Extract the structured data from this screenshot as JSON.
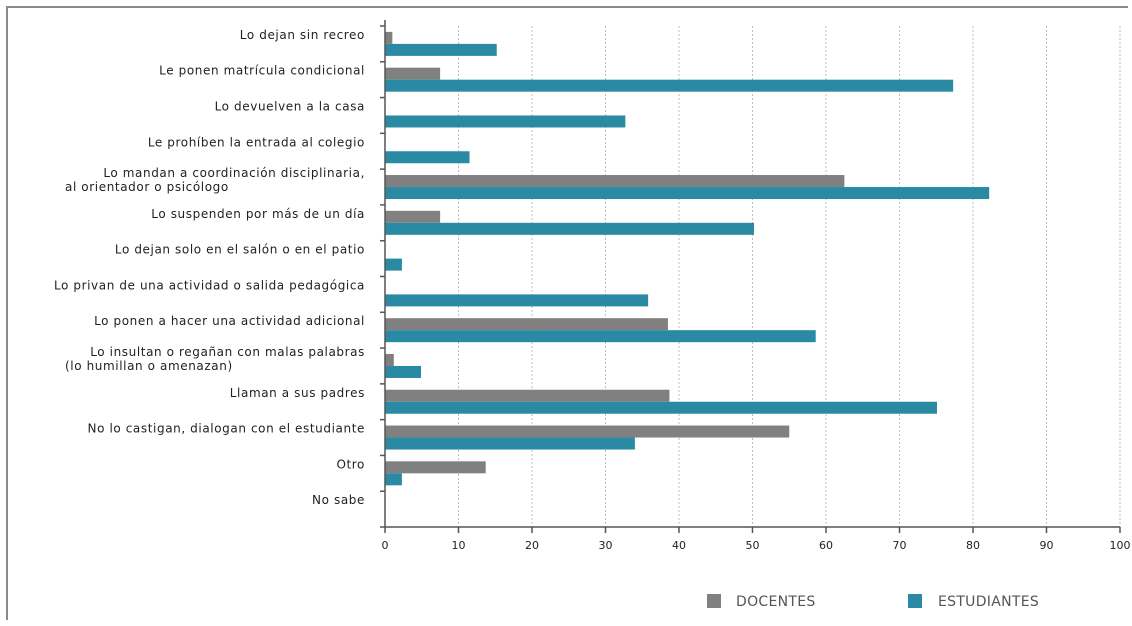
{
  "chart_data": {
    "type": "bar",
    "orientation": "horizontal",
    "categories": [
      [
        "Lo dejan sin recreo"
      ],
      [
        "Le ponen matrícula condicional"
      ],
      [
        "Lo devuelven a la casa"
      ],
      [
        "Le prohíben la entrada al colegio"
      ],
      [
        "Lo mandan a coordinación disciplinaria,",
        "al orientador o psicólogo"
      ],
      [
        "Lo suspenden por más de un día"
      ],
      [
        "Lo dejan solo en el salón o en el patio"
      ],
      [
        "Lo privan de una actividad o salida pedagógica"
      ],
      [
        "Lo ponen a hacer una actividad adicional"
      ],
      [
        "Lo insultan o regañan con malas palabras",
        "(lo humillan o amenazan)"
      ],
      [
        "Llaman a sus padres"
      ],
      [
        "No lo castigan, dialogan con el estudiante"
      ],
      [
        "Otro"
      ],
      [
        "No sabe"
      ]
    ],
    "series": [
      {
        "name": "DOCENTES",
        "color": "#808080",
        "values": [
          1,
          7.5,
          0,
          0,
          62.5,
          7.5,
          0,
          0,
          38.5,
          1.2,
          38.7,
          55,
          13.7,
          0
        ]
      },
      {
        "name": "ESTUDIANTES",
        "color": "#2b8aa3",
        "values": [
          15.2,
          77.3,
          32.7,
          11.5,
          82.2,
          50.2,
          2.3,
          35.8,
          58.6,
          4.9,
          75.1,
          34,
          2.3,
          0
        ]
      }
    ],
    "xlim": [
      0,
      100
    ],
    "xticks": [
      "0",
      "10",
      "20",
      "30",
      "40",
      "50",
      "60",
      "70",
      "80",
      "90",
      "100"
    ],
    "grid": "vertical dotted",
    "legend": "bottom-right"
  }
}
